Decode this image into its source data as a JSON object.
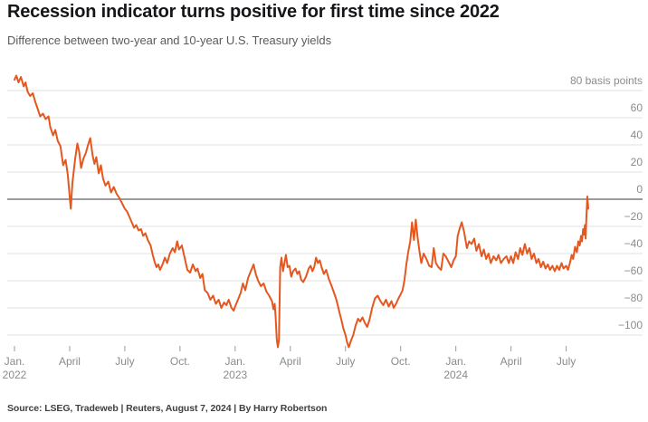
{
  "header": {
    "title": "Recession indicator turns positive for first time since 2022",
    "subtitle": "Difference between two-year and 10-year U.S. Treasury yields"
  },
  "footer": {
    "source": "Source: LSEG, Tradeweb | Reuters, August 7, 2024 | By Harry Robertson"
  },
  "chart_data": {
    "type": "line",
    "title": "Recession indicator turns positive for first time since 2022",
    "subtitle": "Difference between two-year and 10-year U.S. Treasury yields",
    "series_name": "2-year minus 10-year U.S. Treasury yield spread",
    "ylabel": "basis points",
    "xlabel": "",
    "x_unit": "months since Jan 1, 2022",
    "x_range": [
      "Jan. 2022",
      "Aug. 2024"
    ],
    "ylim": [
      -112,
      95
    ],
    "grid": true,
    "legend": "none",
    "colors": {
      "line": "#e4581f",
      "zero_line": "#9c9c9e",
      "grid_line": "#e2e2e2",
      "tick": "#9a9a9c",
      "axis_text": "#8a8b8d"
    },
    "y_ticks": [
      {
        "value": 80,
        "label": "80 basis points"
      },
      {
        "value": 60,
        "label": "60"
      },
      {
        "value": 40,
        "label": "40"
      },
      {
        "value": 20,
        "label": "20"
      },
      {
        "value": 0,
        "label": "0"
      },
      {
        "value": -20,
        "label": "−20"
      },
      {
        "value": -40,
        "label": "−40"
      },
      {
        "value": -60,
        "label": "−60"
      },
      {
        "value": -80,
        "label": "−80"
      },
      {
        "value": -100,
        "label": "−100"
      }
    ],
    "x_ticks": [
      {
        "t": 0,
        "label": "Jan.",
        "year": "2022"
      },
      {
        "t": 3,
        "label": "April",
        "year": ""
      },
      {
        "t": 6,
        "label": "July",
        "year": ""
      },
      {
        "t": 9,
        "label": "Oct.",
        "year": ""
      },
      {
        "t": 12,
        "label": "Jan.",
        "year": "2023"
      },
      {
        "t": 15,
        "label": "April",
        "year": ""
      },
      {
        "t": 18,
        "label": "July",
        "year": ""
      },
      {
        "t": 21,
        "label": "Oct.",
        "year": ""
      },
      {
        "t": 24,
        "label": "Jan.",
        "year": "2024"
      },
      {
        "t": 27,
        "label": "April",
        "year": ""
      },
      {
        "t": 30,
        "label": "July",
        "year": ""
      }
    ],
    "points": [
      [
        0,
        88
      ],
      [
        0.1,
        91
      ],
      [
        0.22,
        86
      ],
      [
        0.35,
        90
      ],
      [
        0.5,
        83
      ],
      [
        0.6,
        86
      ],
      [
        0.72,
        79
      ],
      [
        0.85,
        76
      ],
      [
        1.0,
        78
      ],
      [
        1.12,
        72
      ],
      [
        1.25,
        67
      ],
      [
        1.4,
        61
      ],
      [
        1.55,
        63
      ],
      [
        1.7,
        59
      ],
      [
        1.85,
        61
      ],
      [
        1.95,
        53
      ],
      [
        2.1,
        47
      ],
      [
        2.22,
        51
      ],
      [
        2.35,
        43
      ],
      [
        2.5,
        39
      ],
      [
        2.65,
        25
      ],
      [
        2.78,
        29
      ],
      [
        2.9,
        18
      ],
      [
        3.0,
        2
      ],
      [
        3.06,
        -7
      ],
      [
        3.15,
        12
      ],
      [
        3.3,
        30
      ],
      [
        3.42,
        41
      ],
      [
        3.52,
        35
      ],
      [
        3.62,
        23
      ],
      [
        3.75,
        30
      ],
      [
        3.88,
        34
      ],
      [
        4.0,
        40
      ],
      [
        4.12,
        45
      ],
      [
        4.25,
        32
      ],
      [
        4.35,
        26
      ],
      [
        4.45,
        31
      ],
      [
        4.58,
        19
      ],
      [
        4.7,
        25
      ],
      [
        4.82,
        15
      ],
      [
        4.95,
        10
      ],
      [
        5.1,
        13
      ],
      [
        5.25,
        5
      ],
      [
        5.4,
        9
      ],
      [
        5.55,
        4
      ],
      [
        5.7,
        1
      ],
      [
        5.85,
        -3
      ],
      [
        6.0,
        -7
      ],
      [
        6.12,
        -9
      ],
      [
        6.25,
        -13
      ],
      [
        6.38,
        -17
      ],
      [
        6.5,
        -21
      ],
      [
        6.62,
        -19
      ],
      [
        6.75,
        -23
      ],
      [
        6.88,
        -22
      ],
      [
        7.0,
        -27
      ],
      [
        7.12,
        -25
      ],
      [
        7.25,
        -30
      ],
      [
        7.4,
        -34
      ],
      [
        7.52,
        -41
      ],
      [
        7.62,
        -46
      ],
      [
        7.72,
        -50
      ],
      [
        7.82,
        -48
      ],
      [
        7.92,
        -52
      ],
      [
        8.05,
        -48
      ],
      [
        8.18,
        -43
      ],
      [
        8.3,
        -47
      ],
      [
        8.45,
        -40
      ],
      [
        8.6,
        -36
      ],
      [
        8.72,
        -39
      ],
      [
        8.85,
        -31
      ],
      [
        8.95,
        -37
      ],
      [
        9.1,
        -34
      ],
      [
        9.25,
        -43
      ],
      [
        9.4,
        -52
      ],
      [
        9.55,
        -54
      ],
      [
        9.7,
        -48
      ],
      [
        9.85,
        -53
      ],
      [
        9.95,
        -51
      ],
      [
        10.1,
        -58
      ],
      [
        10.22,
        -55
      ],
      [
        10.35,
        -67
      ],
      [
        10.5,
        -69
      ],
      [
        10.65,
        -74
      ],
      [
        10.8,
        -71
      ],
      [
        10.95,
        -77
      ],
      [
        11.1,
        -74
      ],
      [
        11.25,
        -80
      ],
      [
        11.4,
        -76
      ],
      [
        11.52,
        -78
      ],
      [
        11.65,
        -74
      ],
      [
        11.8,
        -80
      ],
      [
        11.92,
        -82
      ],
      [
        12.0,
        -79
      ],
      [
        12.15,
        -74
      ],
      [
        12.3,
        -69
      ],
      [
        12.42,
        -62
      ],
      [
        12.55,
        -67
      ],
      [
        12.7,
        -58
      ],
      [
        12.85,
        -53
      ],
      [
        13.0,
        -48
      ],
      [
        13.12,
        -55
      ],
      [
        13.25,
        -60
      ],
      [
        13.4,
        -64
      ],
      [
        13.55,
        -62
      ],
      [
        13.7,
        -68
      ],
      [
        13.85,
        -71
      ],
      [
        14.0,
        -75
      ],
      [
        14.08,
        -81
      ],
      [
        14.15,
        -77
      ],
      [
        14.2,
        -86
      ],
      [
        14.26,
        -103
      ],
      [
        14.32,
        -109
      ],
      [
        14.38,
        -104
      ],
      [
        14.45,
        -50
      ],
      [
        14.52,
        -43
      ],
      [
        14.6,
        -53
      ],
      [
        14.68,
        -47
      ],
      [
        14.76,
        -41
      ],
      [
        14.85,
        -50
      ],
      [
        14.95,
        -49
      ],
      [
        15.05,
        -57
      ],
      [
        15.15,
        -53
      ],
      [
        15.28,
        -51
      ],
      [
        15.38,
        -55
      ],
      [
        15.48,
        -53
      ],
      [
        15.58,
        -59
      ],
      [
        15.7,
        -61
      ],
      [
        15.85,
        -57
      ],
      [
        16.0,
        -51
      ],
      [
        16.1,
        -49
      ],
      [
        16.2,
        -53
      ],
      [
        16.3,
        -50
      ],
      [
        16.4,
        -43
      ],
      [
        16.5,
        -47
      ],
      [
        16.6,
        -45
      ],
      [
        16.7,
        -50
      ],
      [
        16.82,
        -55
      ],
      [
        16.95,
        -52
      ],
      [
        17.1,
        -59
      ],
      [
        17.22,
        -63
      ],
      [
        17.35,
        -68
      ],
      [
        17.48,
        -73
      ],
      [
        17.58,
        -78
      ],
      [
        17.68,
        -84
      ],
      [
        17.78,
        -89
      ],
      [
        17.88,
        -95
      ],
      [
        18.0,
        -100
      ],
      [
        18.08,
        -105
      ],
      [
        18.18,
        -109
      ],
      [
        18.3,
        -104
      ],
      [
        18.42,
        -100
      ],
      [
        18.55,
        -93
      ],
      [
        18.68,
        -88
      ],
      [
        18.8,
        -90
      ],
      [
        18.92,
        -87
      ],
      [
        19.05,
        -91
      ],
      [
        19.18,
        -94
      ],
      [
        19.3,
        -89
      ],
      [
        19.45,
        -80
      ],
      [
        19.6,
        -73
      ],
      [
        19.75,
        -71
      ],
      [
        19.9,
        -75
      ],
      [
        20.05,
        -78
      ],
      [
        20.2,
        -74
      ],
      [
        20.35,
        -79
      ],
      [
        20.5,
        -75
      ],
      [
        20.62,
        -80
      ],
      [
        20.75,
        -77
      ],
      [
        20.88,
        -73
      ],
      [
        21.0,
        -70
      ],
      [
        21.1,
        -67
      ],
      [
        21.2,
        -60
      ],
      [
        21.32,
        -47
      ],
      [
        21.42,
        -38
      ],
      [
        21.52,
        -31
      ],
      [
        21.62,
        -17
      ],
      [
        21.72,
        -30
      ],
      [
        21.82,
        -15
      ],
      [
        21.92,
        -28
      ],
      [
        22.02,
        -38
      ],
      [
        22.12,
        -47
      ],
      [
        22.25,
        -40
      ],
      [
        22.4,
        -44
      ],
      [
        22.55,
        -49
      ],
      [
        22.68,
        -50
      ],
      [
        22.8,
        -36
      ],
      [
        22.92,
        -47
      ],
      [
        23.05,
        -50
      ],
      [
        23.2,
        -52
      ],
      [
        23.32,
        -40
      ],
      [
        23.45,
        -42
      ],
      [
        23.6,
        -46
      ],
      [
        23.75,
        -50
      ],
      [
        23.88,
        -45
      ],
      [
        24.0,
        -42
      ],
      [
        24.1,
        -27
      ],
      [
        24.2,
        -22
      ],
      [
        24.32,
        -17
      ],
      [
        24.45,
        -24
      ],
      [
        24.6,
        -36
      ],
      [
        24.72,
        -31
      ],
      [
        24.85,
        -33
      ],
      [
        25.0,
        -29
      ],
      [
        25.12,
        -38
      ],
      [
        25.25,
        -33
      ],
      [
        25.4,
        -42
      ],
      [
        25.52,
        -37
      ],
      [
        25.65,
        -44
      ],
      [
        25.78,
        -40
      ],
      [
        25.9,
        -47
      ],
      [
        26.05,
        -42
      ],
      [
        26.2,
        -45
      ],
      [
        26.32,
        -41
      ],
      [
        26.45,
        -47
      ],
      [
        26.6,
        -44
      ],
      [
        26.75,
        -42
      ],
      [
        26.88,
        -47
      ],
      [
        27.0,
        -42
      ],
      [
        27.12,
        -47
      ],
      [
        27.25,
        -39
      ],
      [
        27.38,
        -44
      ],
      [
        27.5,
        -36
      ],
      [
        27.62,
        -41
      ],
      [
        27.75,
        -33
      ],
      [
        27.88,
        -40
      ],
      [
        28.0,
        -36
      ],
      [
        28.12,
        -44
      ],
      [
        28.25,
        -40
      ],
      [
        28.38,
        -47
      ],
      [
        28.5,
        -44
      ],
      [
        28.62,
        -50
      ],
      [
        28.75,
        -46
      ],
      [
        28.88,
        -51
      ],
      [
        29.0,
        -48
      ],
      [
        29.12,
        -52
      ],
      [
        29.25,
        -49
      ],
      [
        29.38,
        -53
      ],
      [
        29.5,
        -49
      ],
      [
        29.62,
        -52
      ],
      [
        29.75,
        -47
      ],
      [
        29.85,
        -51
      ],
      [
        30.0,
        -49
      ],
      [
        30.1,
        -52
      ],
      [
        30.2,
        -47
      ],
      [
        30.3,
        -41
      ],
      [
        30.38,
        -44
      ],
      [
        30.48,
        -35
      ],
      [
        30.58,
        -39
      ],
      [
        30.66,
        -31
      ],
      [
        30.74,
        -34
      ],
      [
        30.8,
        -27
      ],
      [
        30.86,
        -31
      ],
      [
        30.92,
        -22
      ],
      [
        30.97,
        -26
      ],
      [
        31.02,
        -19
      ],
      [
        31.06,
        -29
      ],
      [
        31.1,
        -12
      ],
      [
        31.15,
        2
      ],
      [
        31.2,
        -7
      ]
    ]
  }
}
